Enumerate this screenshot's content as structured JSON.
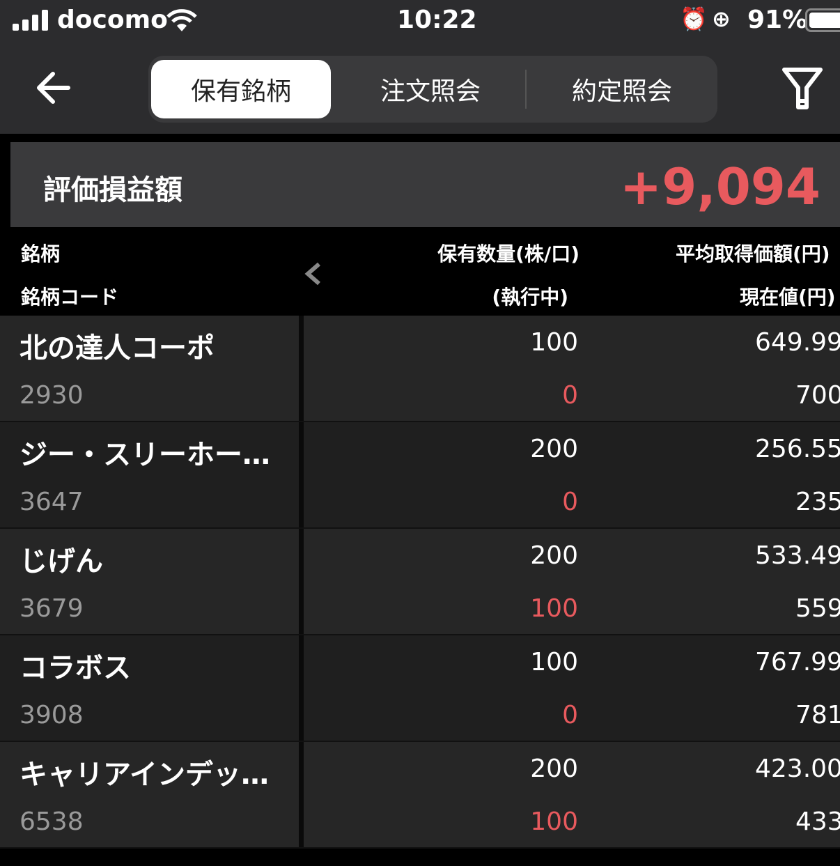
{
  "status_bar": {
    "carrier": "docomo",
    "time": "10:22",
    "battery": "91%"
  },
  "tabs": [
    {
      "label": "保有銘柄",
      "active": true
    },
    {
      "label": "注文照会",
      "active": false
    },
    {
      "label": "約定照会",
      "active": false
    }
  ],
  "summary": {
    "label": "評価損益額",
    "value": "+9,094",
    "value_color": "#e85a5e"
  },
  "headers": {
    "name": "銘柄",
    "code": "銘柄コード",
    "qty": "保有数量(株/口)",
    "executing": "(執行中)",
    "avg_price": "平均取得価額(円)",
    "current": "現在値(円)"
  },
  "rows": [
    {
      "name": "北の達人コーポ",
      "code": "2930",
      "qty": "100",
      "executing": "0",
      "avg_price": "649.99",
      "current": "700"
    },
    {
      "name": "ジー・スリーホー…",
      "code": "3647",
      "qty": "200",
      "executing": "0",
      "avg_price": "256.55",
      "current": "235"
    },
    {
      "name": "じげん",
      "code": "3679",
      "qty": "200",
      "executing": "100",
      "avg_price": "533.49",
      "current": "559"
    },
    {
      "name": "コラボス",
      "code": "3908",
      "qty": "100",
      "executing": "0",
      "avg_price": "767.99",
      "current": "781"
    },
    {
      "name": "キャリアインデッ…",
      "code": "6538",
      "qty": "200",
      "executing": "100",
      "avg_price": "423.00",
      "current": "433"
    }
  ]
}
